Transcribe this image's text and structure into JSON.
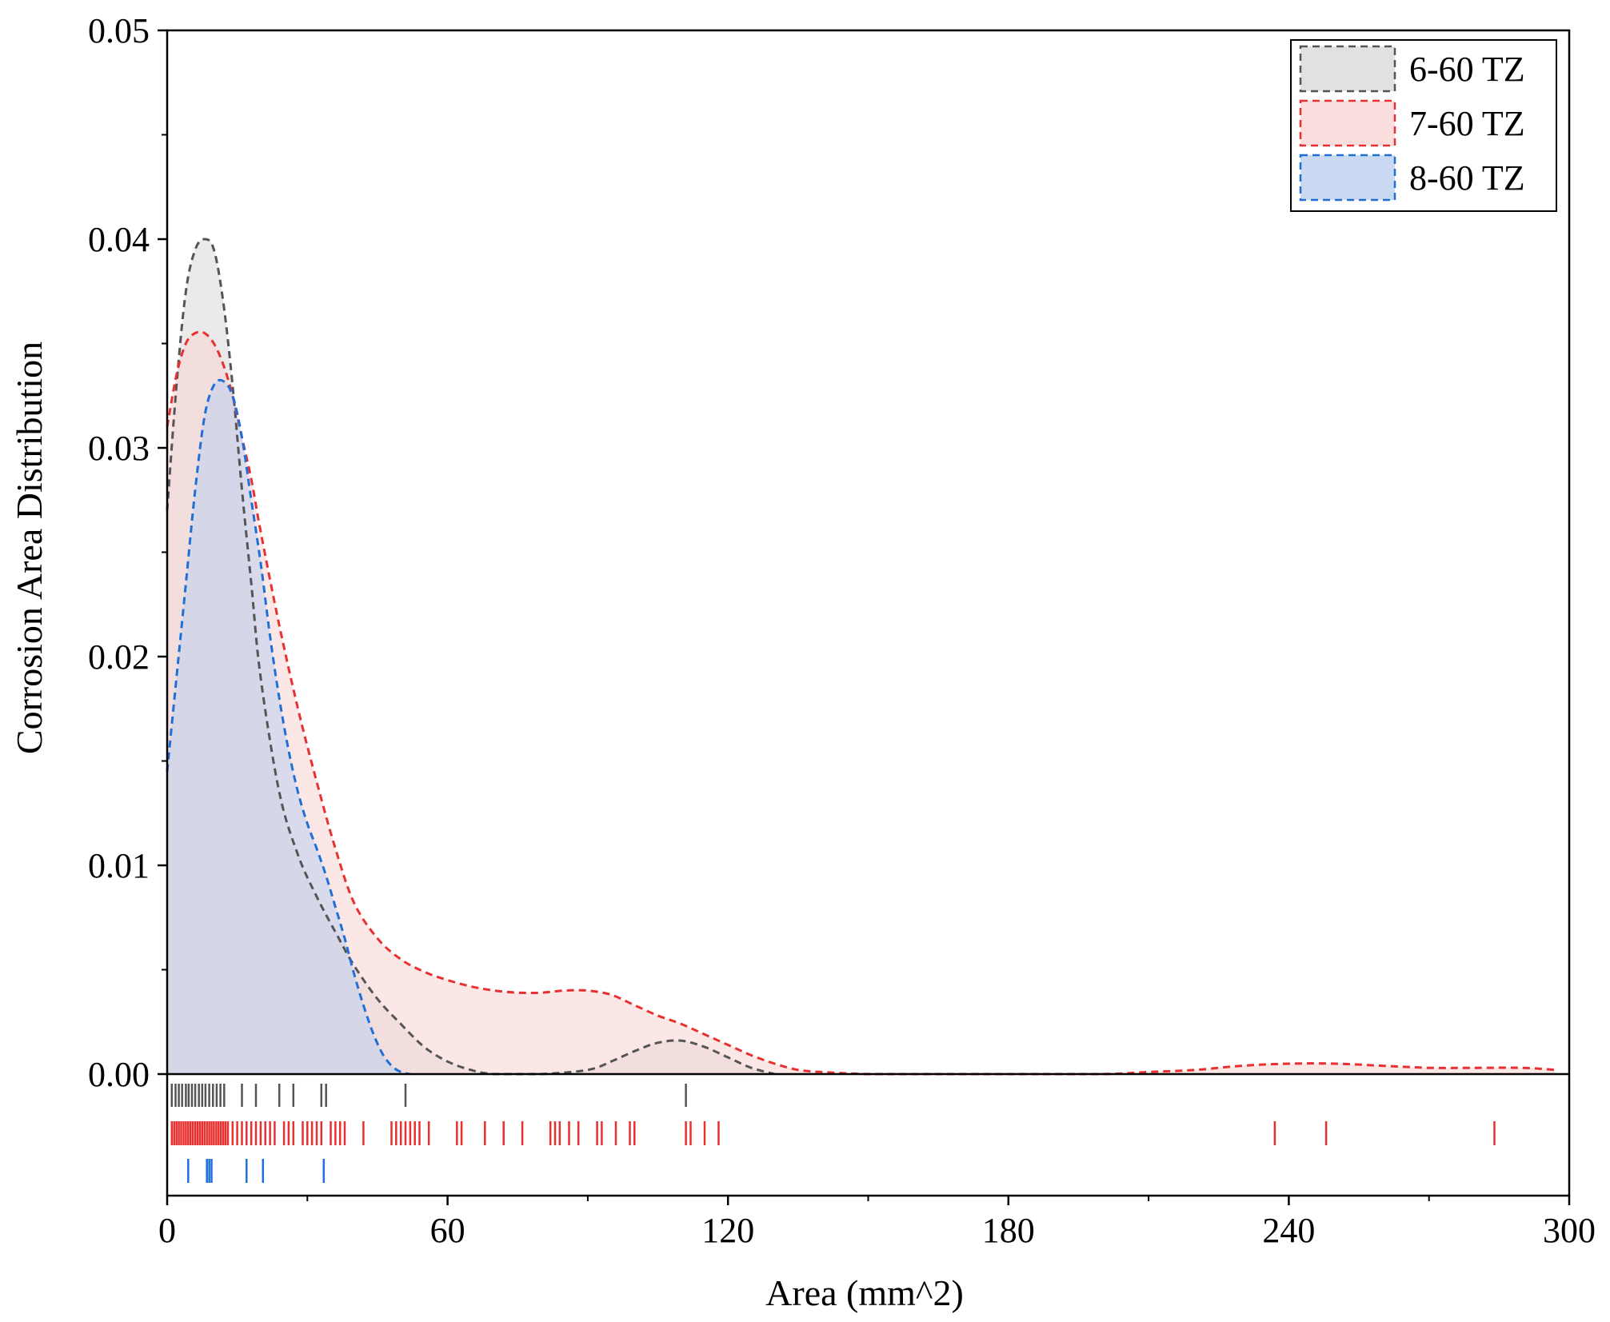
{
  "chart_data": {
    "type": "area",
    "title": "",
    "xlabel": "Area (mm^2)",
    "ylabel": "Corrosion Area Distribution",
    "xlim": [
      0,
      300
    ],
    "ylim": [
      0,
      0.05
    ],
    "x_ticks": [
      0,
      60,
      120,
      180,
      240,
      300
    ],
    "x_tick_labels": [
      "0",
      "60",
      "120",
      "180",
      "240",
      "300"
    ],
    "y_ticks": [
      0,
      0.01,
      0.02,
      0.03,
      0.04,
      0.05
    ],
    "y_tick_labels": [
      "0.00",
      "0.01",
      "0.02",
      "0.03",
      "0.04",
      "0.05"
    ],
    "grid": false,
    "legend_position": "top-right",
    "line_style": "dashed",
    "series": [
      {
        "name": "6-60 TZ",
        "color": "#555555",
        "fill": "#d9d9d9",
        "x": [
          0,
          2,
          4,
          6,
          8,
          10,
          12,
          14,
          16,
          18,
          20,
          24,
          28,
          32,
          36,
          40,
          45,
          50,
          55,
          60,
          65,
          70,
          80,
          90,
          95,
          100,
          105,
          110,
          115,
          120,
          125,
          130
        ],
        "y": [
          0.027,
          0.033,
          0.0375,
          0.0395,
          0.04,
          0.0395,
          0.037,
          0.033,
          0.028,
          0.0235,
          0.019,
          0.0135,
          0.0105,
          0.0085,
          0.0068,
          0.0052,
          0.0036,
          0.0024,
          0.0013,
          0.0006,
          0.0002,
          0.0,
          0.0,
          0.0002,
          0.0006,
          0.0011,
          0.0015,
          0.0016,
          0.0013,
          0.0008,
          0.0003,
          0.0
        ]
      },
      {
        "name": "7-60 TZ",
        "color": "#e83030",
        "fill": "#f9d4d4",
        "x": [
          0,
          2,
          4,
          6,
          8,
          10,
          12,
          14,
          16,
          18,
          20,
          24,
          28,
          32,
          36,
          40,
          45,
          50,
          55,
          60,
          65,
          70,
          75,
          80,
          85,
          90,
          95,
          100,
          105,
          110,
          115,
          120,
          125,
          130,
          135,
          140,
          150,
          160,
          180,
          200,
          210,
          220,
          230,
          240,
          250,
          260,
          270,
          280,
          290,
          297
        ],
        "y": [
          0.031,
          0.0335,
          0.035,
          0.0355,
          0.0355,
          0.035,
          0.034,
          0.0325,
          0.0305,
          0.0285,
          0.026,
          0.0215,
          0.0175,
          0.014,
          0.0108,
          0.0082,
          0.0065,
          0.0055,
          0.0049,
          0.0045,
          0.0042,
          0.004,
          0.0039,
          0.0039,
          0.004,
          0.004,
          0.0038,
          0.0033,
          0.0028,
          0.0024,
          0.0019,
          0.0014,
          0.0009,
          0.0005,
          0.0002,
          0.0001,
          0.0,
          0.0,
          0.0,
          0.0,
          0.0001,
          0.0002,
          0.0004,
          0.0005,
          0.0005,
          0.0004,
          0.0003,
          0.0003,
          0.0003,
          0.0002
        ]
      },
      {
        "name": "8-60 TZ",
        "color": "#1f6fd6",
        "fill": "#bcd0ee",
        "x": [
          0,
          2,
          4,
          6,
          8,
          10,
          12,
          14,
          16,
          18,
          20,
          22,
          24,
          26,
          28,
          30,
          32,
          34,
          36,
          38,
          40,
          42,
          44,
          46,
          48,
          50,
          52
        ],
        "y": [
          0.0145,
          0.019,
          0.0235,
          0.028,
          0.0315,
          0.033,
          0.0332,
          0.0325,
          0.0305,
          0.0275,
          0.0245,
          0.021,
          0.018,
          0.0155,
          0.0135,
          0.012,
          0.0108,
          0.0095,
          0.008,
          0.0065,
          0.0048,
          0.0033,
          0.002,
          0.001,
          0.0004,
          0.0001,
          0.0
        ]
      }
    ],
    "rug": [
      {
        "series": "6-60 TZ",
        "color": "#555555",
        "values": [
          1,
          1.8,
          2.5,
          3.2,
          4,
          4.6,
          5.3,
          6,
          6.8,
          7.5,
          8.2,
          9,
          9.8,
          10.6,
          11.4,
          12.2,
          16,
          19,
          24,
          27,
          33,
          34,
          51,
          111
        ]
      },
      {
        "series": "7-60 TZ",
        "color": "#e83030",
        "values": [
          1,
          1.5,
          2,
          2.5,
          3,
          3.5,
          4,
          4.5,
          5,
          5.5,
          6,
          6.5,
          7,
          7.5,
          8,
          8.5,
          9,
          9.5,
          10,
          10.5,
          11,
          11.5,
          12,
          12.5,
          13,
          14,
          15,
          16,
          17,
          18,
          19,
          20,
          21,
          22,
          23,
          25,
          26,
          27,
          29,
          30,
          31,
          32,
          33,
          35,
          36,
          37,
          38,
          42,
          48,
          49,
          50,
          51,
          52,
          53,
          54,
          56,
          62,
          63,
          68,
          72,
          76,
          82,
          83,
          84,
          86,
          88,
          92,
          93,
          96,
          99,
          100,
          111,
          112,
          115,
          118,
          237,
          248,
          284
        ]
      },
      {
        "series": "8-60 TZ",
        "color": "#1f6fd6",
        "values": [
          4.5,
          8.5,
          9,
          9.5,
          17,
          20.5,
          33.5
        ]
      }
    ]
  }
}
